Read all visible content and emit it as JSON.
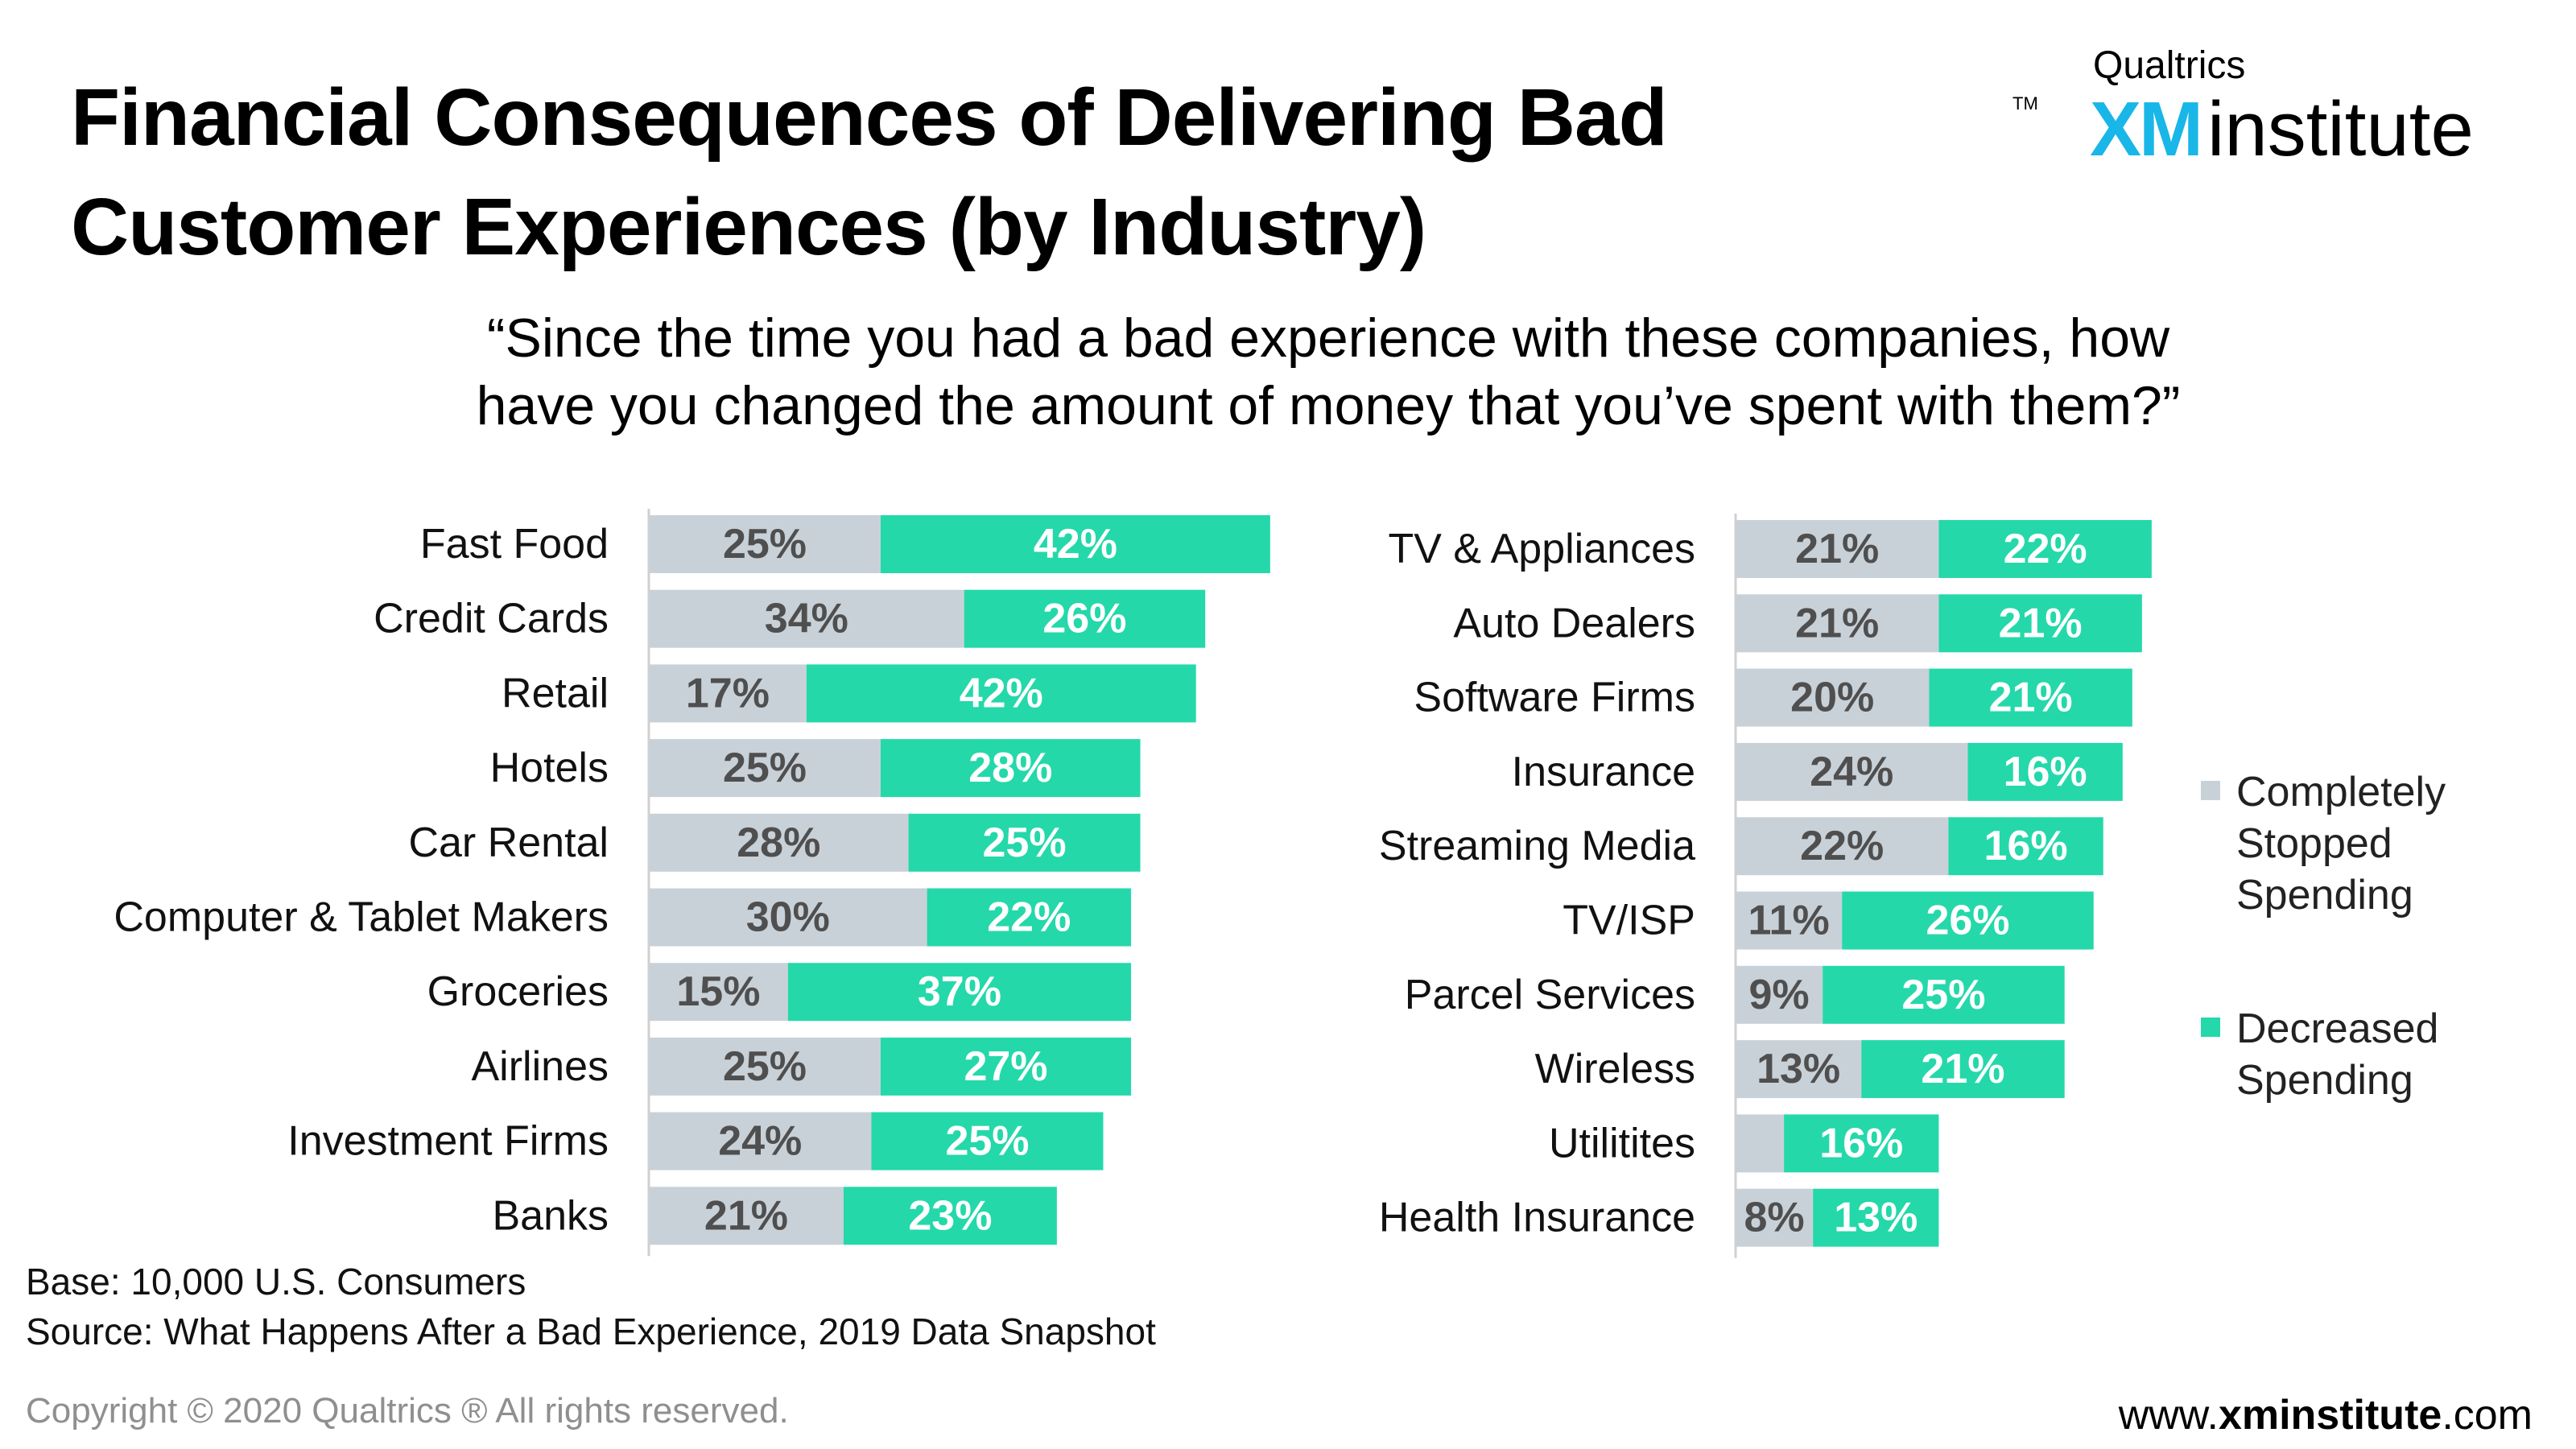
{
  "title_line1": "Financial Consequences of Delivering Bad",
  "title_line2": "Customer Experiences (by Industry)",
  "brand": {
    "top": "Qualtrics",
    "xm": "XM",
    "name": "institute",
    "tm": "TM"
  },
  "subtitle_line1": "“Since the time you had a bad experience with these companies, how",
  "subtitle_line2": "have you changed the amount of money that you’ve spent with them?”",
  "colors": {
    "stopped": "#c9d1d8",
    "decreased": "#24d8aa",
    "stopped_text": "#4f4f4f",
    "decreased_text": "#ffffff",
    "axis": "#d0d0d0"
  },
  "legend": {
    "stopped_line1": "Completely",
    "stopped_line2": "Stopped",
    "stopped_line3": "Spending",
    "decreased_line1": "Decreased",
    "decreased_line2": "Spending"
  },
  "chart_data": [
    {
      "type": "bar",
      "orientation": "horizontal",
      "stacked": true,
      "categories": [
        "Fast Food",
        "Credit Cards",
        "Retail",
        "Hotels",
        "Car Rental",
        "Computer & Tablet Makers",
        "Groceries",
        "Airlines",
        "Investment Firms",
        "Banks"
      ],
      "series": [
        {
          "name": "Completely Stopped Spending",
          "values": [
            25,
            34,
            17,
            25,
            28,
            30,
            15,
            25,
            24,
            21
          ],
          "labels": [
            "25%",
            "34%",
            "17%",
            "25%",
            "28%",
            "30%",
            "15%",
            "25%",
            "24%",
            "21%"
          ]
        },
        {
          "name": "Decreased Spending",
          "values": [
            42,
            26,
            42,
            28,
            25,
            22,
            37,
            27,
            25,
            23
          ],
          "labels": [
            "42%",
            "26%",
            "42%",
            "28%",
            "25%",
            "22%",
            "37%",
            "27%",
            "25%",
            "23%"
          ]
        }
      ],
      "xlim": [
        0,
        70
      ]
    },
    {
      "type": "bar",
      "orientation": "horizontal",
      "stacked": true,
      "categories": [
        "TV & Appliances",
        "Auto Dealers",
        "Software Firms",
        "Insurance",
        "Streaming Media",
        "TV/ISP",
        "Parcel Services",
        "Wireless",
        "Utilitites",
        "Health Insurance"
      ],
      "series": [
        {
          "name": "Completely Stopped Spending",
          "values": [
            21,
            21,
            20,
            24,
            22,
            11,
            9,
            13,
            5,
            8
          ],
          "labels": [
            "21%",
            "21%",
            "20%",
            "24%",
            "22%",
            "11%",
            "9%",
            "13%",
            "",
            "8%"
          ]
        },
        {
          "name": "Decreased Spending",
          "values": [
            22,
            21,
            21,
            16,
            16,
            26,
            25,
            21,
            16,
            13
          ],
          "labels": [
            "22%",
            "21%",
            "21%",
            "16%",
            "16%",
            "26%",
            "25%",
            "21%",
            "16%",
            "13%"
          ]
        }
      ],
      "xlim": [
        0,
        70
      ]
    }
  ],
  "footer": {
    "base": "Base: 10,000 U.S. Consumers",
    "source": "Source: What Happens After a Bad Experience, 2019 Data Snapshot",
    "copyright": "Copyright © 2020 Qualtrics ® All rights reserved.",
    "url_prefix": "www.",
    "url_bold": "xminstitute",
    "url_suffix": ".com"
  }
}
